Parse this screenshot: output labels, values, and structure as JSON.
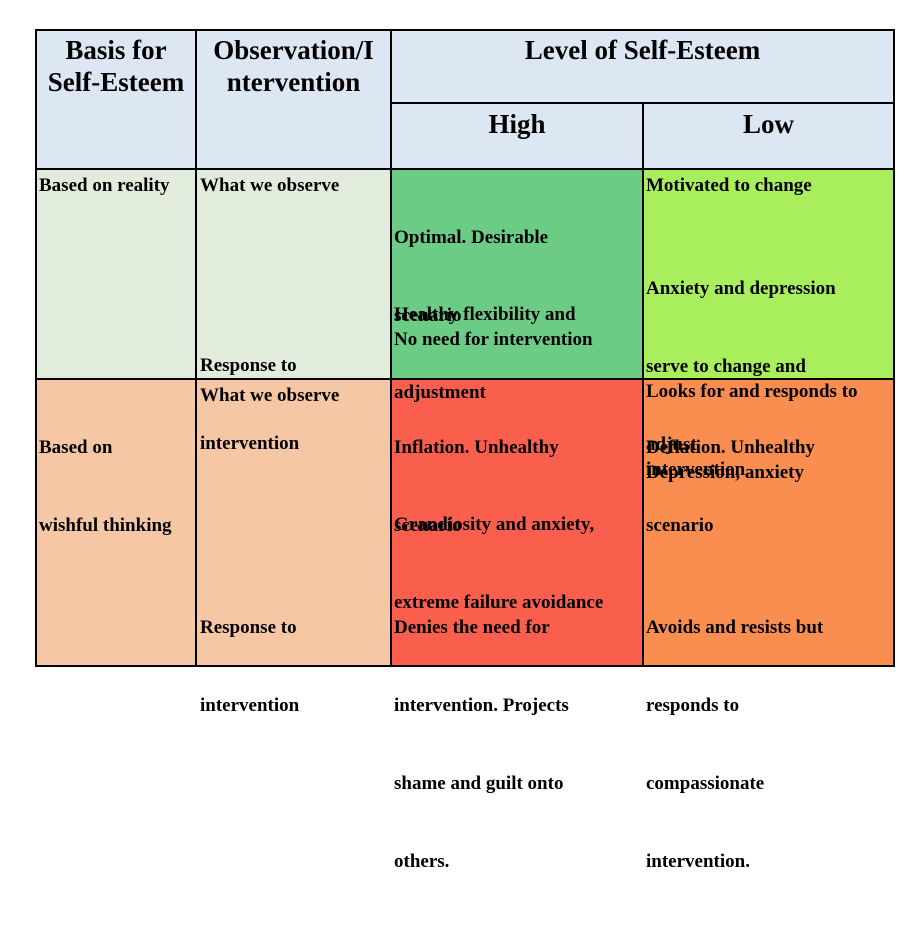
{
  "header": {
    "col1": [
      "Basis for",
      "Self-Esteem"
    ],
    "col2": [
      "Observation/I",
      "ntervention"
    ],
    "level": "Level of Self-Esteem",
    "high": "High",
    "low": "Low"
  },
  "rows": {
    "reality": {
      "basis": "Based on reality",
      "observe_label": "What we observe",
      "response_label": [
        "Response to",
        "intervention"
      ],
      "high": {
        "observe_1": [
          "Optimal. Desirable",
          "scenario"
        ],
        "observe_2": [
          "Healthy flexibility and",
          "adjustment"
        ],
        "response": "No need for intervention"
      },
      "low": {
        "observe_1": "Motivated to change",
        "observe_2": [
          "Anxiety and depression",
          "serve to change and",
          "adjust"
        ],
        "response": [
          "Looks for and responds to",
          "intervention"
        ]
      }
    },
    "wishful": {
      "basis": [
        "Based on",
        "wishful thinking"
      ],
      "observe_label": "What we observe",
      "response_label": [
        "Response to",
        "intervention"
      ],
      "high": {
        "observe_1": [
          "Inflation. Unhealthy",
          "scenario"
        ],
        "observe_2": [
          "Grandiosity and anxiety,",
          "extreme failure avoidance"
        ],
        "response": [
          "Denies the need for",
          "intervention. Projects",
          "shame and guilt onto",
          "others."
        ]
      },
      "low": {
        "observe_1": [
          "Deflation. Unhealthy",
          "scenario"
        ],
        "observe_2": "Depression, anxiety",
        "response": [
          "Avoids and resists but",
          "responds to",
          "compassionate",
          "intervention."
        ]
      }
    }
  },
  "colors": {
    "header": "#dde7f3",
    "reality_left": "#e2ecdc",
    "reality_high": "#6ccc86",
    "reality_low": "#a8ee5d",
    "wishful_left": "#f6c7a5",
    "wishful_high": "#fa5f4d",
    "wishful_low": "#fa8d50"
  }
}
